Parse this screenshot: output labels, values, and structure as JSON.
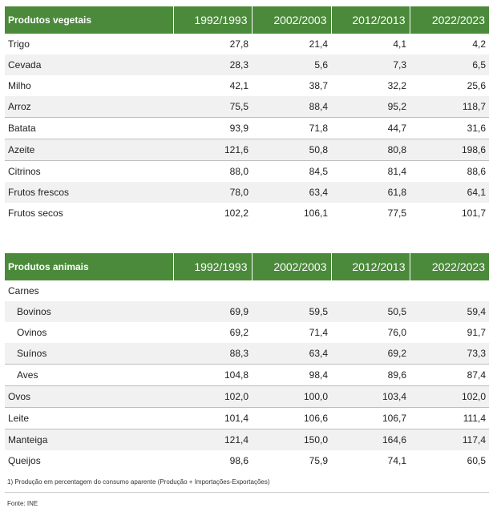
{
  "vegetais": {
    "header": [
      "Produtos vegetais",
      "1992/1993",
      "2002/2003",
      "2012/2013",
      "2022/2023"
    ],
    "rows": [
      {
        "name": "Trigo",
        "values": [
          "27,8",
          "21,4",
          "4,1",
          "4,2"
        ]
      },
      {
        "name": "Cevada",
        "values": [
          "28,3",
          "5,6",
          "7,3",
          "6,5"
        ]
      },
      {
        "name": "Milho",
        "values": [
          "42,1",
          "38,7",
          "32,2",
          "25,6"
        ]
      },
      {
        "name": "Arroz",
        "values": [
          "75,5",
          "88,4",
          "95,2",
          "118,7"
        ]
      },
      {
        "name": "Batata",
        "values": [
          "93,9",
          "71,8",
          "44,7",
          "31,6"
        ]
      },
      {
        "name": "Azeite",
        "values": [
          "121,6",
          "50,8",
          "80,8",
          "198,6"
        ]
      },
      {
        "name": "Citrinos",
        "values": [
          "88,0",
          "84,5",
          "81,4",
          "88,6"
        ]
      },
      {
        "name": "Frutos frescos",
        "values": [
          "78,0",
          "63,4",
          "61,8",
          "64,1"
        ]
      },
      {
        "name": "Frutos secos",
        "values": [
          "102,2",
          "106,1",
          "77,5",
          "101,7"
        ]
      }
    ]
  },
  "animais": {
    "header": [
      "Produtos animais",
      "1992/1993",
      "2002/2003",
      "2012/2013",
      "2022/2023"
    ],
    "group": "Carnes",
    "subrows": [
      {
        "name": "Bovinos",
        "values": [
          "69,9",
          "59,5",
          "50,5",
          "59,4"
        ]
      },
      {
        "name": "Ovinos",
        "values": [
          "69,2",
          "71,4",
          "76,0",
          "91,7"
        ]
      },
      {
        "name": "Suínos",
        "values": [
          "88,3",
          "63,4",
          "69,2",
          "73,3"
        ]
      },
      {
        "name": "Aves",
        "values": [
          "104,8",
          "98,4",
          "89,6",
          "87,4"
        ]
      }
    ],
    "rows": [
      {
        "name": "Ovos",
        "values": [
          "102,0",
          "100,0",
          "103,4",
          "102,0"
        ]
      },
      {
        "name": "Leite",
        "values": [
          "101,4",
          "106,6",
          "106,7",
          "111,4"
        ]
      },
      {
        "name": "Manteiga",
        "values": [
          "121,4",
          "150,0",
          "164,6",
          "117,4"
        ]
      },
      {
        "name": "Queijos",
        "values": [
          "98,6",
          "75,9",
          "74,1",
          "60,5"
        ]
      }
    ]
  },
  "footnote": "1) Produção em percentagem do consumo aparente (Produção + Importações-Exportações)",
  "source": "Fonte: INE"
}
